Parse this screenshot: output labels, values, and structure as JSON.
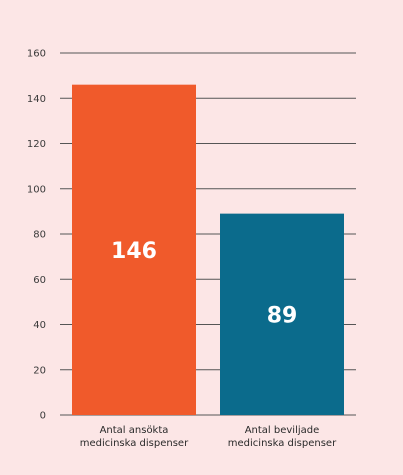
{
  "chart_data": {
    "type": "bar",
    "title": "",
    "xlabel": "",
    "ylabel": "",
    "ylim": [
      0,
      160
    ],
    "yticks": [
      0,
      20,
      40,
      60,
      80,
      100,
      120,
      140,
      160
    ],
    "grid": true,
    "categories": [
      [
        "Antal ansökta",
        "medicinska dispenser"
      ],
      [
        "Antal beviljade",
        "medicinska dispenser"
      ]
    ],
    "values": [
      146,
      89
    ],
    "value_labels": [
      "146",
      "89"
    ],
    "colors": [
      "#f05a2b",
      "#0b6b8c"
    ]
  }
}
